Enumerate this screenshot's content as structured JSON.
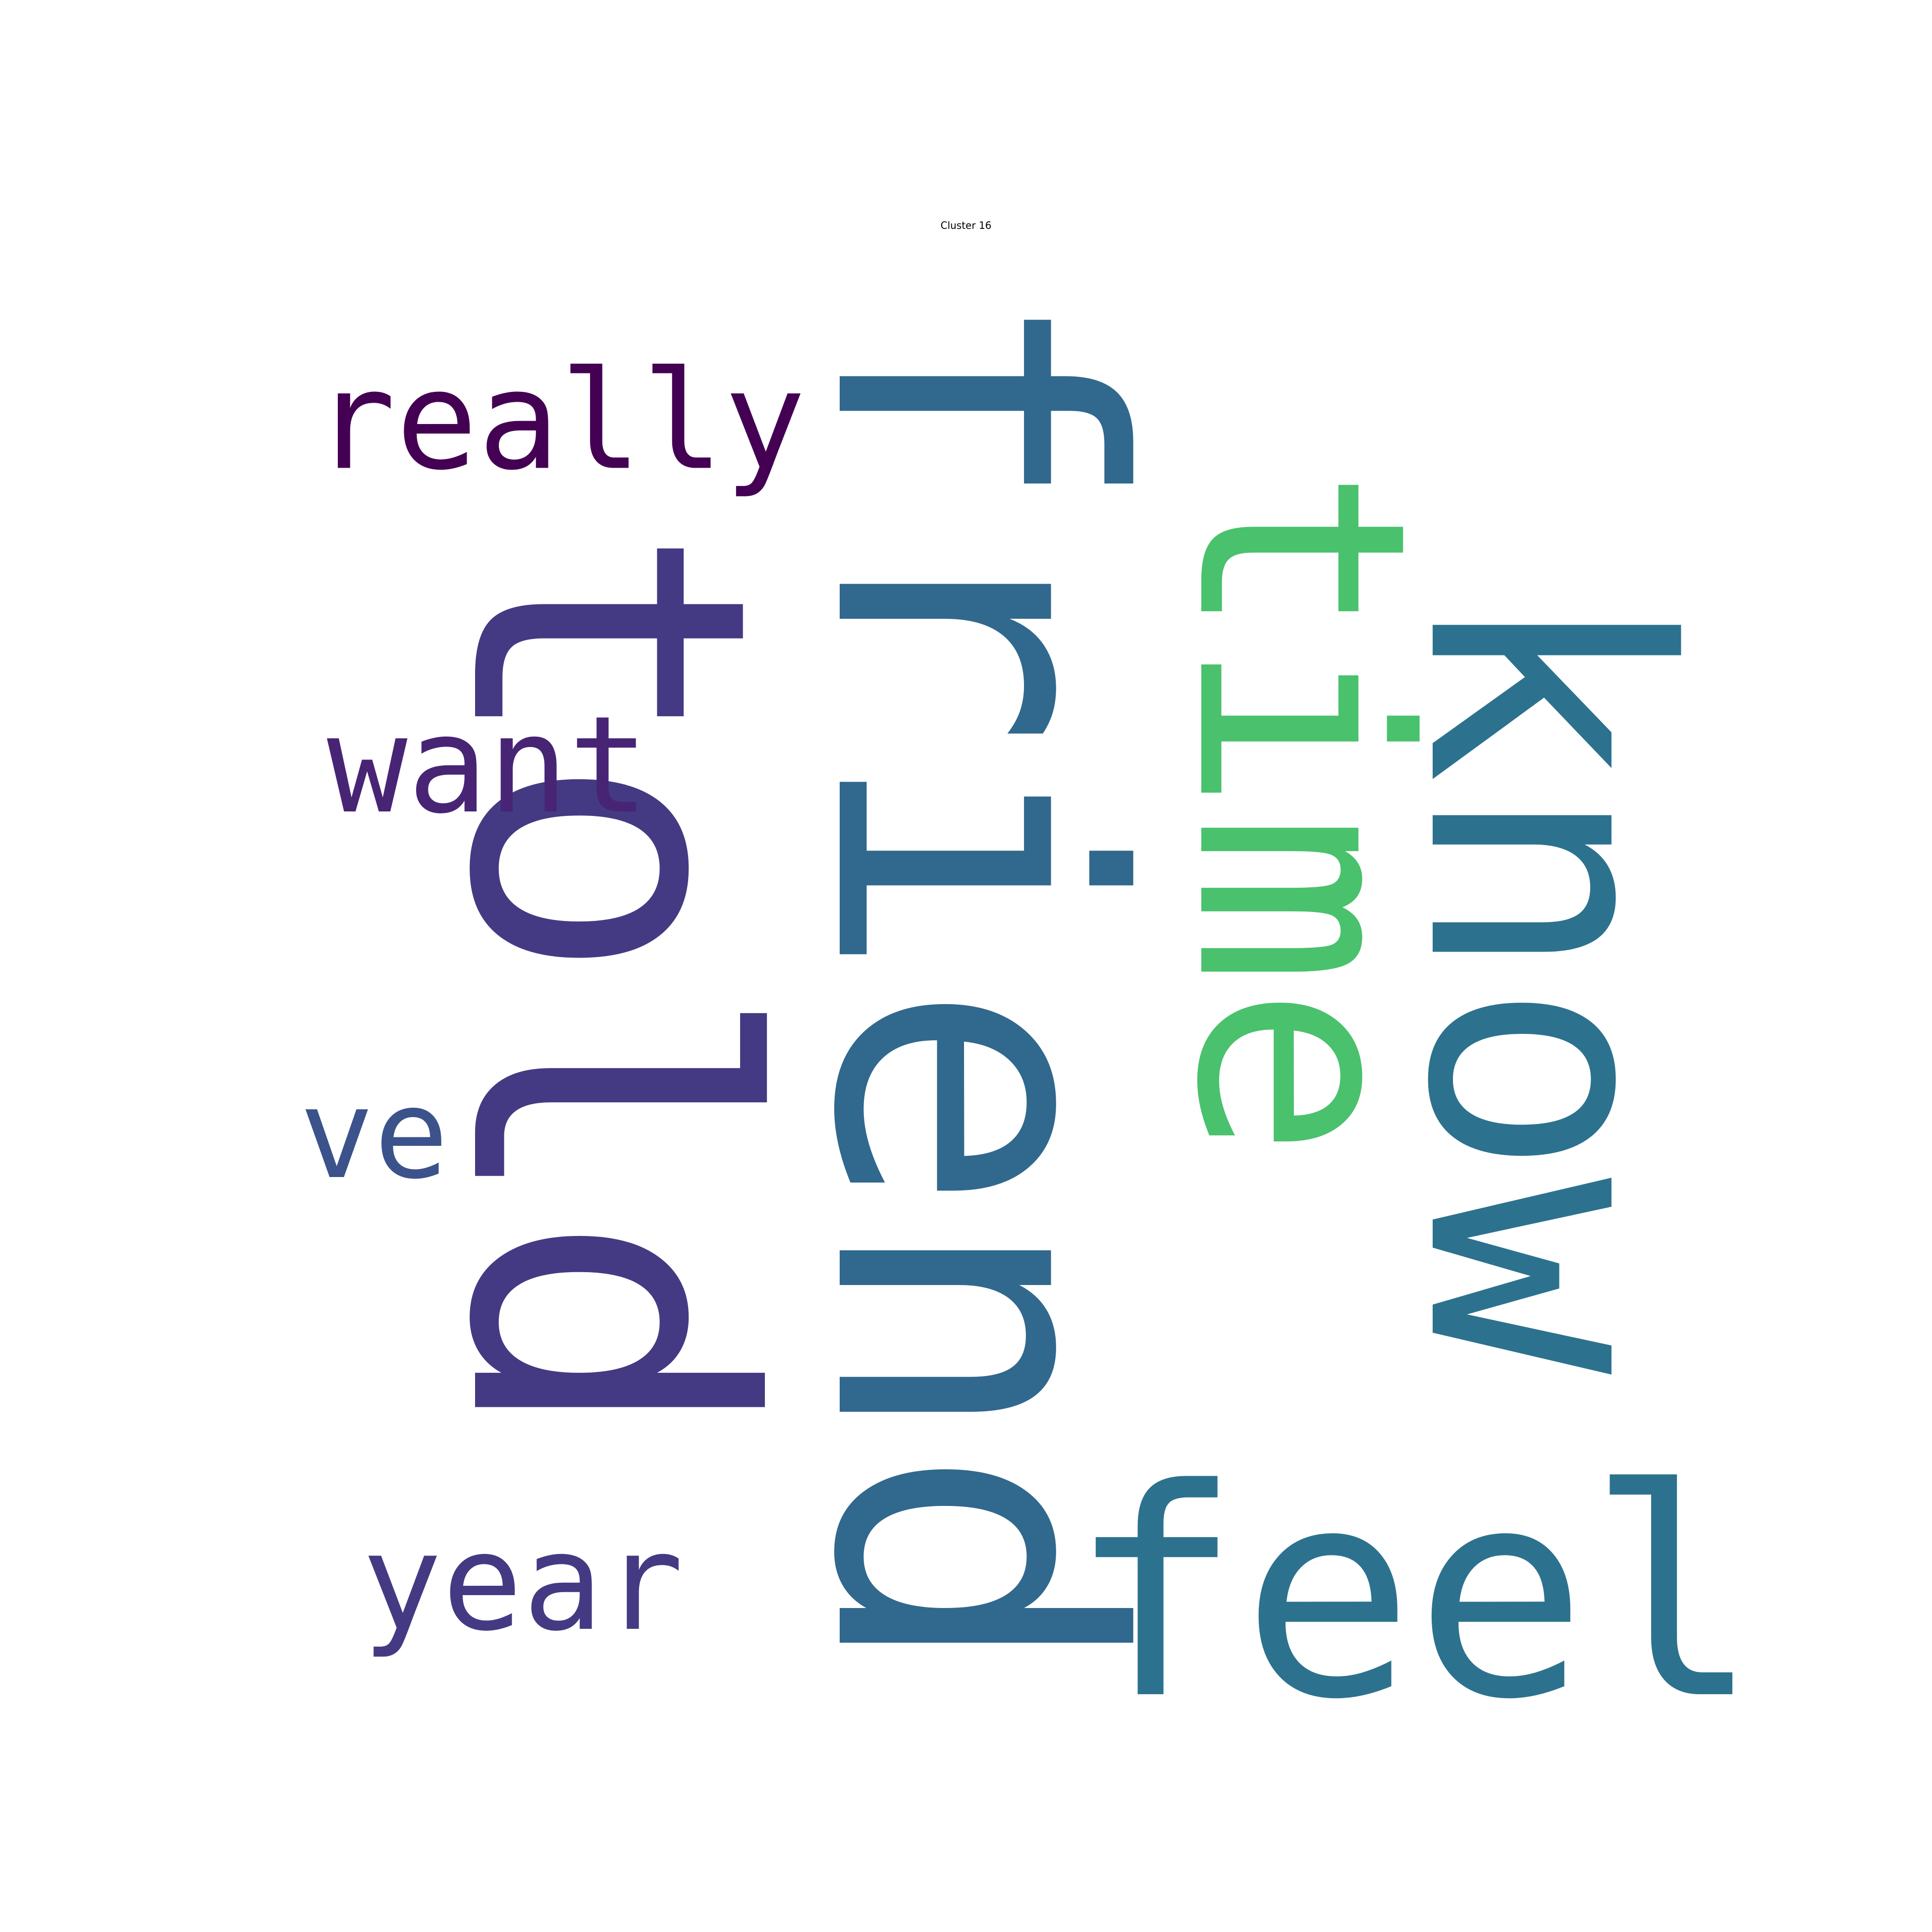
{
  "title": "Cluster 16",
  "words": [
    {
      "key": "friend",
      "text": "friend",
      "color": "#31688e",
      "orientation": "vertical"
    },
    {
      "key": "told",
      "text": "told",
      "color": "#443a83",
      "orientation": "vertical"
    },
    {
      "key": "know",
      "text": "know",
      "color": "#2c728e",
      "orientation": "vertical"
    },
    {
      "key": "time",
      "text": "time",
      "color": "#4ac16d",
      "orientation": "vertical"
    },
    {
      "key": "feel",
      "text": "feel",
      "color": "#2c728e",
      "orientation": "horizontal"
    },
    {
      "key": "really",
      "text": "really",
      "color": "#440154",
      "orientation": "horizontal"
    },
    {
      "key": "want",
      "text": "want",
      "color": "#482475",
      "orientation": "horizontal"
    },
    {
      "key": "year",
      "text": "year",
      "color": "#443a83",
      "orientation": "horizontal"
    },
    {
      "key": "ve",
      "text": "ve",
      "color": "#3b528b",
      "orientation": "horizontal"
    }
  ]
}
